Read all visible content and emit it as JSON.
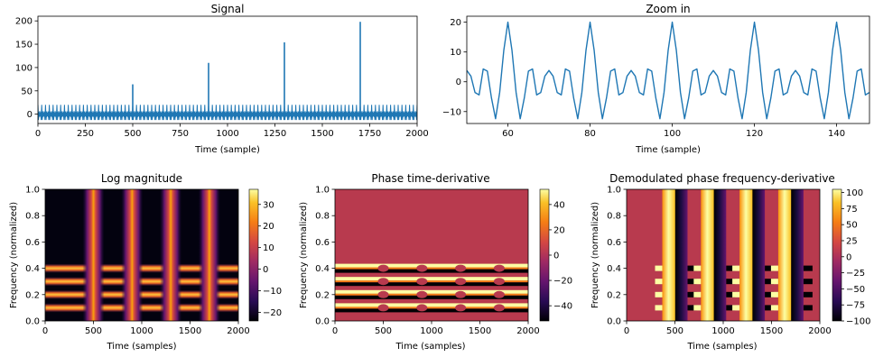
{
  "chart_data": [
    {
      "type": "line",
      "title": "Signal",
      "xlabel": "Time (sample)",
      "ylabel": "",
      "xlim": [
        0,
        2000
      ],
      "ylim": [
        -20,
        210
      ],
      "xticks": [
        0,
        250,
        500,
        750,
        1000,
        1250,
        1500,
        1750,
        2000
      ],
      "yticks": [
        0,
        50,
        100,
        150,
        200
      ],
      "color": "#1f77b4",
      "series": [
        {
          "description_values": "periodic signal oscillating roughly between -12 and 20 with period 20 samples",
          "spikes": [
            {
              "x": 500,
              "y": 64
            },
            {
              "x": 900,
              "y": 110
            },
            {
              "x": 1300,
              "y": 154
            },
            {
              "x": 1700,
              "y": 198
            }
          ]
        }
      ]
    },
    {
      "type": "line",
      "title": "Zoom in",
      "xlabel": "Time (sample)",
      "ylabel": "",
      "xlim": [
        50,
        148
      ],
      "ylim": [
        -14,
        22
      ],
      "xticks": [
        60,
        80,
        100,
        120,
        140
      ],
      "yticks": [
        -10,
        0,
        10,
        20
      ],
      "color": "#1f77b4",
      "period": 20,
      "cycle_values": [
        20,
        10.5,
        -3.6,
        -12.4,
        -5.4,
        3.6,
        4.3,
        -4.4,
        -3.6,
        1.9,
        3.8,
        1.9,
        -3.6,
        -4.4,
        4.3,
        3.6,
        -5.4,
        -12.4,
        -3.6,
        10.5
      ]
    },
    {
      "type": "heatmap",
      "title": "Log magnitude",
      "xlabel": "Time (samples)",
      "ylabel": "Frequency (normalized)",
      "xlim": [
        0,
        2000
      ],
      "ylim": [
        0,
        1
      ],
      "xticks": [
        0,
        500,
        1000,
        1500,
        2000
      ],
      "yticks": [
        0.0,
        0.2,
        0.4,
        0.6,
        0.8,
        1.0
      ],
      "colorbar": {
        "ticks": [
          30,
          20,
          10,
          0,
          -10,
          -20
        ],
        "range": [
          -24,
          37
        ],
        "colormap": "inferno"
      },
      "features": {
        "vertical_bands_x": [
          500,
          900,
          1300,
          1700
        ],
        "horizontal_bands_y": [
          0.1,
          0.2,
          0.3,
          0.4
        ]
      }
    },
    {
      "type": "heatmap",
      "title": "Phase time-derivative",
      "xlabel": "Time (samples)",
      "ylabel": "Frequency (normalized)",
      "xlim": [
        0,
        2000
      ],
      "ylim": [
        0,
        1
      ],
      "xticks": [
        0,
        500,
        1000,
        1500,
        2000
      ],
      "yticks": [
        0.0,
        0.2,
        0.4,
        0.6,
        0.8,
        1.0
      ],
      "colorbar": {
        "ticks": [
          40,
          20,
          0,
          -20,
          -40
        ],
        "range": [
          -52,
          52
        ],
        "colormap": "inferno"
      },
      "features": {
        "horizontal_bands_y": [
          0.1,
          0.2,
          0.3,
          0.4
        ]
      }
    },
    {
      "type": "heatmap",
      "title": "Demodulated phase frequency-derivative",
      "xlabel": "Time (samples)",
      "ylabel": "Frequency (normalized)",
      "xlim": [
        0,
        2000
      ],
      "ylim": [
        0,
        1
      ],
      "xticks": [
        0,
        500,
        1000,
        1500,
        2000
      ],
      "yticks": [
        0.0,
        0.2,
        0.4,
        0.6,
        0.8,
        1.0
      ],
      "colorbar": {
        "ticks": [
          100,
          75,
          50,
          25,
          0,
          -25,
          -50,
          -75,
          -100
        ],
        "range": [
          -100,
          105
        ],
        "colormap": "inferno"
      },
      "features": {
        "vertical_bands_x": [
          500,
          900,
          1300,
          1700
        ],
        "horizontal_bands_y": [
          0.1,
          0.2,
          0.3,
          0.4
        ]
      }
    }
  ]
}
